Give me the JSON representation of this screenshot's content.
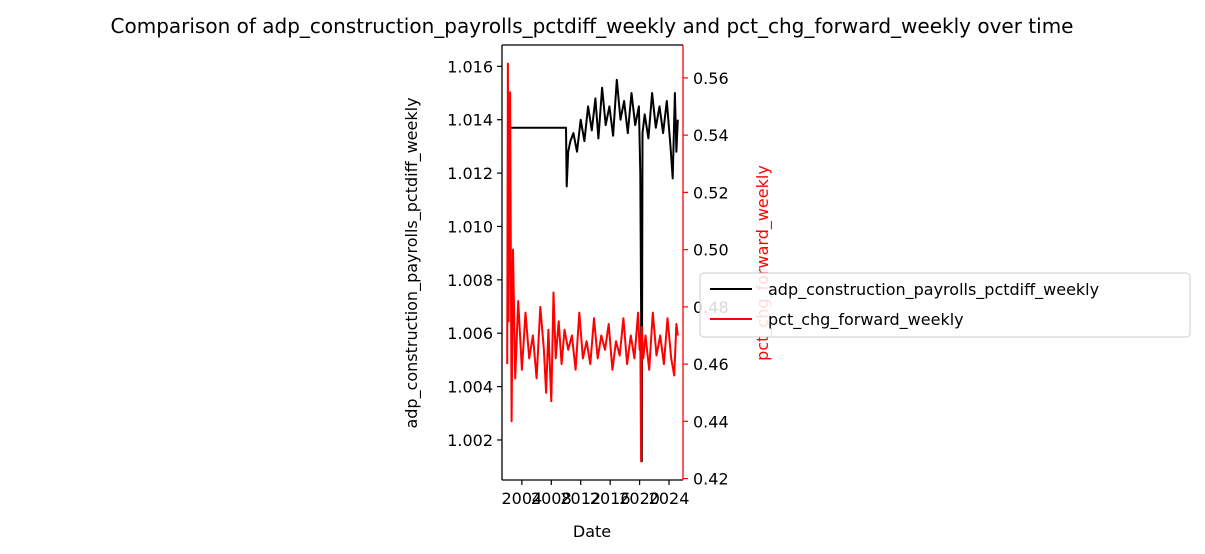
{
  "chart_data": {
    "type": "line",
    "title": "Comparison of adp_construction_payrolls_pctdiff_weekly and pct_chg_forward_weekly over time",
    "xlabel": "Date",
    "ylabel_left": "adp_construction_payrolls_pctdiff_weekly",
    "ylabel_right": "pct_chg_forward_weekly",
    "xlim": [
      2001.3,
      2025.9
    ],
    "ylim_left": [
      1.0005,
      1.0168
    ],
    "ylim_right": [
      0.4195,
      0.5715
    ],
    "x_ticks": [
      2004,
      2008,
      2012,
      2016,
      2020,
      2024
    ],
    "y_ticks_left": [
      "1.002",
      "1.004",
      "1.006",
      "1.008",
      "1.010",
      "1.012",
      "1.014",
      "1.016"
    ],
    "y_ticks_right": [
      "0.42",
      "0.44",
      "0.46",
      "0.48",
      "0.50",
      "0.52",
      "0.54",
      "0.56"
    ],
    "grid": false,
    "legend_position": "center-right (outside)",
    "colors": {
      "left_series": "#000000",
      "right_series": "#ff0000",
      "right_axis": "#ff0000"
    },
    "series": [
      {
        "name": "adp_construction_payrolls_pctdiff_weekly",
        "axis": "left",
        "color": "#000000",
        "x": [
          2002.0,
          2010.0,
          2010.1,
          2010.3,
          2010.6,
          2011.0,
          2011.5,
          2012.0,
          2012.5,
          2013.0,
          2013.5,
          2014.0,
          2014.4,
          2014.9,
          2015.4,
          2015.9,
          2016.4,
          2016.9,
          2017.4,
          2017.9,
          2018.4,
          2018.9,
          2019.4,
          2019.9,
          2020.1,
          2020.2,
          2020.3,
          2020.4,
          2020.7,
          2021.2,
          2021.7,
          2022.2,
          2022.7,
          2023.2,
          2023.7,
          2024.2,
          2024.5,
          2024.8,
          2025.0,
          2025.2
        ],
        "y": [
          1.0137,
          1.0137,
          1.0115,
          1.0128,
          1.0132,
          1.0135,
          1.0128,
          1.014,
          1.0132,
          1.0145,
          1.0136,
          1.0148,
          1.0133,
          1.0152,
          1.0138,
          1.0145,
          1.0134,
          1.0155,
          1.014,
          1.0147,
          1.0135,
          1.015,
          1.0138,
          1.0145,
          1.012,
          1.007,
          1.0012,
          1.0135,
          1.0142,
          1.0133,
          1.015,
          1.0137,
          1.0145,
          1.0135,
          1.0147,
          1.013,
          1.0118,
          1.015,
          1.0128,
          1.014
        ]
      },
      {
        "name": "pct_chg_forward_weekly",
        "axis": "right",
        "color": "#ff0000",
        "x": [
          2002.0,
          2002.1,
          2002.2,
          2002.4,
          2002.6,
          2002.8,
          2003.1,
          2003.5,
          2004.0,
          2004.5,
          2005.0,
          2005.5,
          2006.0,
          2006.5,
          2007.0,
          2007.3,
          2007.6,
          2008.0,
          2008.3,
          2008.6,
          2009.0,
          2009.4,
          2009.8,
          2010.3,
          2010.8,
          2011.3,
          2011.8,
          2012.3,
          2012.8,
          2013.3,
          2013.8,
          2014.3,
          2014.8,
          2015.3,
          2015.8,
          2016.3,
          2016.8,
          2017.3,
          2017.8,
          2018.3,
          2018.8,
          2019.3,
          2019.8,
          2020.0,
          2020.1,
          2020.2,
          2020.3,
          2020.5,
          2020.8,
          2021.3,
          2021.8,
          2022.3,
          2022.8,
          2023.3,
          2023.8,
          2024.3,
          2024.7,
          2025.0,
          2025.2
        ],
        "y": [
          0.46,
          0.565,
          0.475,
          0.555,
          0.44,
          0.5,
          0.455,
          0.482,
          0.458,
          0.478,
          0.462,
          0.47,
          0.455,
          0.48,
          0.465,
          0.45,
          0.472,
          0.447,
          0.485,
          0.462,
          0.475,
          0.46,
          0.472,
          0.465,
          0.47,
          0.458,
          0.478,
          0.462,
          0.468,
          0.46,
          0.476,
          0.462,
          0.47,
          0.465,
          0.474,
          0.458,
          0.468,
          0.463,
          0.476,
          0.46,
          0.47,
          0.462,
          0.478,
          0.465,
          0.47,
          0.426,
          0.473,
          0.462,
          0.47,
          0.458,
          0.478,
          0.463,
          0.47,
          0.46,
          0.476,
          0.462,
          0.456,
          0.474,
          0.47
        ]
      }
    ]
  }
}
